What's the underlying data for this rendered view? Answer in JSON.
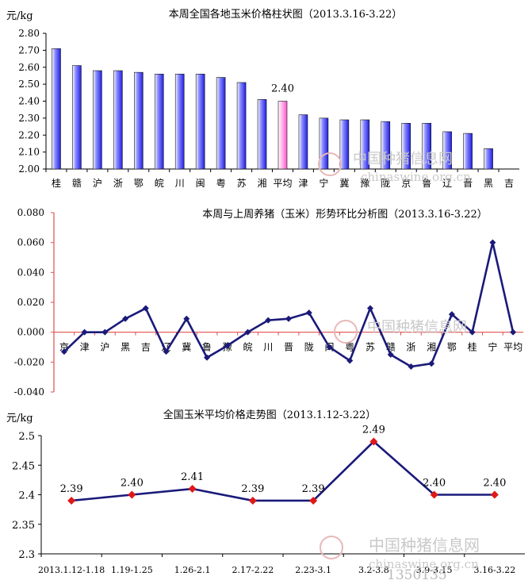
{
  "chart_data": [
    {
      "type": "bar",
      "title": "本周全国各地玉米价格柱状图（2013.3.16-3.22）",
      "ylabel": "元/kg",
      "ylim": [
        2.0,
        2.8
      ],
      "yticks": [
        "2.00",
        "2.10",
        "2.20",
        "2.30",
        "2.40",
        "2.50",
        "2.60",
        "2.70",
        "2.80"
      ],
      "categories": [
        "桂",
        "赣",
        "沪",
        "浙",
        "鄂",
        "皖",
        "川",
        "闽",
        "粤",
        "苏",
        "湘",
        "平均",
        "津",
        "宁",
        "冀",
        "豫",
        "陇",
        "京",
        "鲁",
        "辽",
        "晋",
        "黑",
        "吉"
      ],
      "values": [
        2.71,
        2.61,
        2.58,
        2.58,
        2.57,
        2.56,
        2.56,
        2.56,
        2.54,
        2.51,
        2.41,
        2.4,
        2.32,
        2.3,
        2.29,
        2.29,
        2.28,
        2.27,
        2.27,
        2.22,
        2.21,
        2.12,
        2.0
      ],
      "highlight_label": "2.40",
      "colors": {
        "bar": "#2a2ae6",
        "average": "#ff66d8"
      }
    },
    {
      "type": "line",
      "title": "本周与上周养猪（玉米）形势环比分析图（2013.3.16-3.22）",
      "ylim": [
        -0.04,
        0.08
      ],
      "yticks": [
        "0.080",
        "0.060",
        "0.040",
        "0.020",
        "0.000",
        "-0.020",
        "-0.040"
      ],
      "categories": [
        "京",
        "津",
        "沪",
        "黑",
        "吉",
        "辽",
        "冀",
        "鲁",
        "豫",
        "皖",
        "川",
        "晋",
        "陇",
        "闽",
        "粤",
        "苏",
        "赣",
        "浙",
        "湘",
        "鄂",
        "桂",
        "宁",
        "平均"
      ],
      "values": [
        -0.013,
        0.0,
        0.0,
        0.009,
        0.016,
        -0.013,
        0.009,
        -0.017,
        -0.009,
        0.0,
        0.008,
        0.009,
        0.013,
        -0.01,
        -0.019,
        0.016,
        -0.015,
        -0.023,
        -0.021,
        0.012,
        0.0,
        0.06,
        0.0
      ],
      "colors": {
        "line": "#1a1a7a",
        "axis": "#e05050"
      }
    },
    {
      "type": "line",
      "title": "全国玉米平均价格走势图（2013.1.12-3.22）",
      "ylabel": "元/kg",
      "ylim": [
        2.3,
        2.5
      ],
      "yticks": [
        "2.5",
        "2.45",
        "2.4",
        "2.35",
        "2.3"
      ],
      "categories": [
        "2013.1.12-1.18",
        "1.19-1.25",
        "1.26-2.1",
        "2.17-2.22",
        "2.23-3.1",
        "3.2-3.8",
        "3.9-3.15",
        "3.16-3.22"
      ],
      "values": [
        2.39,
        2.4,
        2.41,
        2.39,
        2.39,
        2.49,
        2.4,
        2.4
      ],
      "data_labels": [
        "2.39",
        "2.40",
        "2.41",
        "2.39",
        "2.39",
        "2.49",
        "2.40",
        "2.40"
      ],
      "colors": {
        "line": "#1a1a7a",
        "marker": "#e01818"
      }
    }
  ],
  "watermark": {
    "cn": "中国种猪信息网",
    "url": "chinaswine.org.cn",
    "footer": "1350135"
  }
}
